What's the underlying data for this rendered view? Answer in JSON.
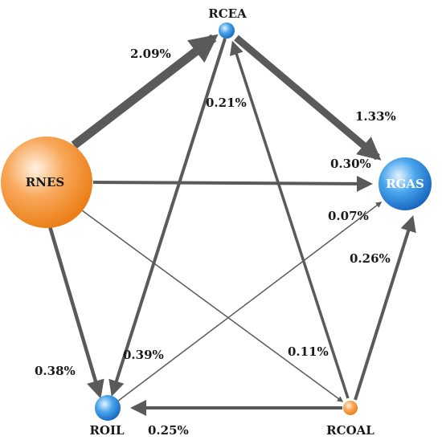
{
  "nodes": {
    "rcea": {
      "label": "RCEA",
      "color": "#3a8fd8"
    },
    "rgas": {
      "label": "RGAS",
      "color": "#1e6fc9"
    },
    "rnes": {
      "label": "RNES",
      "color": "#f0861e"
    },
    "roil": {
      "label": "ROIL",
      "color": "#3a8fd8"
    },
    "rcoal": {
      "label": "RCOAL",
      "color": "#f0861e"
    }
  },
  "edges": {
    "rnes_rcea": {
      "from": "RNES",
      "to": "RCEA",
      "value": "2.09%"
    },
    "rcea_rgas": {
      "from": "RCEA",
      "to": "RGAS",
      "value": "1.33%"
    },
    "rcea_roil": {
      "from": "RCEA",
      "to": "ROIL",
      "value": "0.21%"
    },
    "rnes_rgas": {
      "from": "RNES",
      "to": "RGAS",
      "value": "0.30%"
    },
    "roil_rgas": {
      "from": "ROIL",
      "to": "RGAS",
      "value": "0.07%"
    },
    "rcoal_rgas": {
      "from": "RCOAL",
      "to": "RGAS",
      "value": "0.26%"
    },
    "rnes_roil": {
      "from": "RNES",
      "to": "ROIL",
      "value": "0.38%"
    },
    "rcoal_rcea": {
      "from": "RCOAL",
      "to": "RCEA",
      "value": "0.39%"
    },
    "rnes_rcoal": {
      "from": "RNES",
      "to": "RCOAL",
      "value": "0.11%"
    },
    "rcoal_roil": {
      "from": "RCOAL",
      "to": "ROIL",
      "value": "0.25%"
    }
  }
}
